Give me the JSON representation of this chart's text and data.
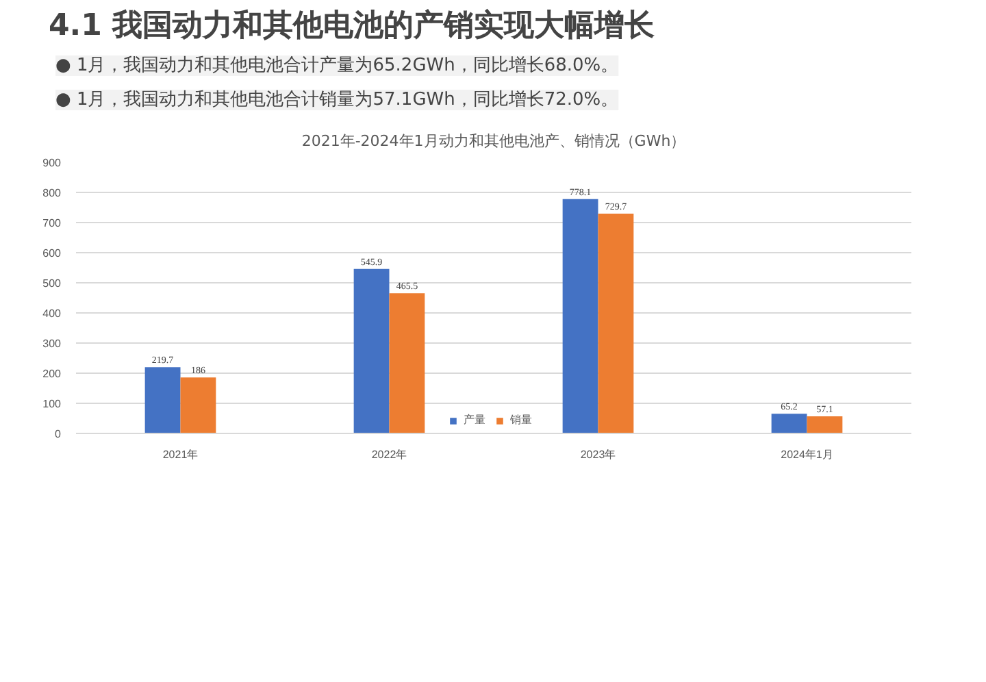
{
  "chart_data": {
    "type": "bar",
    "title": "2021年-2024年1月动力和其他电池产、销情况（GWh）",
    "annotations": [
      "4.1 我国动力和其他电池的产销实现大幅增长",
      "● 1月，我国动力和其他电池合计产量为65.2GWh，同比增长68.0%。",
      "● 1月，我国动力和其他电池合计销量为57.1GWh，同比增长72.0%。"
    ],
    "categories": [
      "2021年",
      "2022年",
      "2023年",
      "2024年1月"
    ],
    "series": [
      {
        "name": "产量",
        "color": "#4472c4",
        "values": [
          219.7,
          545.9,
          778.1,
          65.2
        ]
      },
      {
        "name": "销量",
        "color": "#ed7d31",
        "values": [
          186,
          465.5,
          729.7,
          57.1
        ]
      }
    ],
    "ylim": [
      0,
      900
    ],
    "yticks": [
      0,
      100,
      200,
      300,
      400,
      500,
      600,
      700,
      800,
      900
    ],
    "grid": "y",
    "legend": "bottom",
    "data_labels": true
  }
}
